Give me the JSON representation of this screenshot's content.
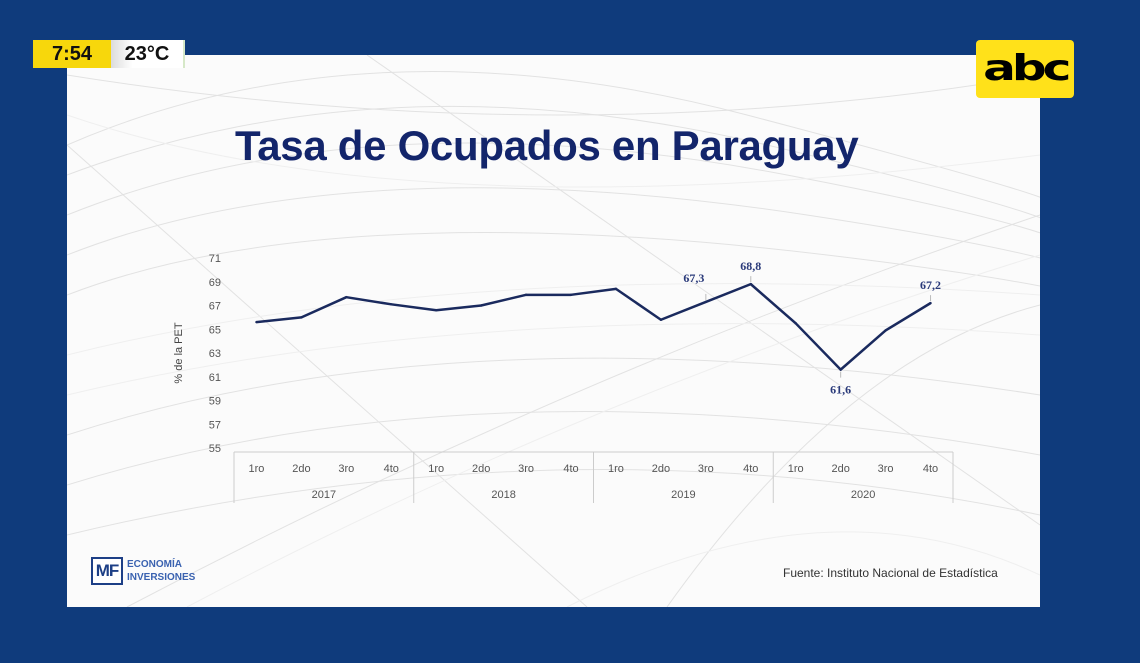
{
  "overlay": {
    "time": "7:54",
    "temperature": "23°C",
    "channel_logo": "abc"
  },
  "slide": {
    "title": "Tasa de Ocupados en Paraguay",
    "source": "Fuente: Instituto Nacional de Estadística",
    "brand": {
      "mark": "MF",
      "line1": "ECONOMÍA",
      "line2": "INVERSIONES"
    }
  },
  "colors": {
    "frame": "#0f3b7c",
    "line": "#1a2a5e",
    "title": "#13256b",
    "clock_yellow": "#f7d70c",
    "abc_yellow": "#ffe11a"
  },
  "chart_data": {
    "type": "line",
    "title": "Tasa de Ocupados en Paraguay",
    "xlabel": "",
    "ylabel": "% de la PET",
    "ylim": [
      55,
      71
    ],
    "yticks": [
      71,
      69,
      67,
      65,
      63,
      61,
      59,
      57,
      55
    ],
    "grid": false,
    "groups": [
      {
        "label": "2017",
        "quarters": [
          "1ro",
          "2do",
          "3ro",
          "4to"
        ]
      },
      {
        "label": "2018",
        "quarters": [
          "1ro",
          "2do",
          "3ro",
          "4to"
        ]
      },
      {
        "label": "2019",
        "quarters": [
          "1ro",
          "2do",
          "3ro",
          "4to"
        ]
      },
      {
        "label": "2020",
        "quarters": [
          "1ro",
          "2do",
          "3ro",
          "4to"
        ]
      }
    ],
    "series": [
      {
        "name": "Tasa de Ocupados",
        "values": [
          65.6,
          66.0,
          67.7,
          67.1,
          66.6,
          67.0,
          67.9,
          67.9,
          68.4,
          65.8,
          67.3,
          68.8,
          65.5,
          61.6,
          64.9,
          67.2
        ]
      }
    ],
    "data_labels": [
      {
        "index": 10,
        "text": "67,3"
      },
      {
        "index": 11,
        "text": "68,8"
      },
      {
        "index": 13,
        "text": "61,6"
      },
      {
        "index": 15,
        "text": "67,2"
      }
    ]
  }
}
